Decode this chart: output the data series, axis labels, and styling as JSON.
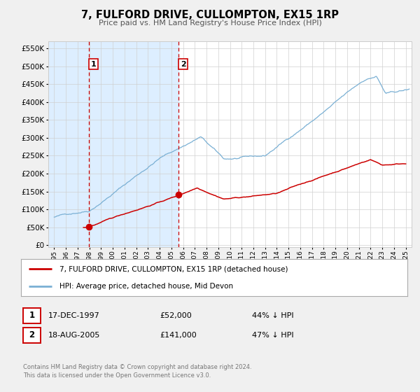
{
  "title": "7, FULFORD DRIVE, CULLOMPTON, EX15 1RP",
  "subtitle": "Price paid vs. HM Land Registry's House Price Index (HPI)",
  "ytick_values": [
    0,
    50000,
    100000,
    150000,
    200000,
    250000,
    300000,
    350000,
    400000,
    450000,
    500000,
    550000
  ],
  "xlim": [
    1994.5,
    2025.5
  ],
  "ylim": [
    -5000,
    570000
  ],
  "sale1_x": 1997.96,
  "sale1_y": 52000,
  "sale2_x": 2005.63,
  "sale2_y": 141000,
  "shade_x_end": 2005.63,
  "legend_line1": "7, FULFORD DRIVE, CULLOMPTON, EX15 1RP (detached house)",
  "legend_line2": "HPI: Average price, detached house, Mid Devon",
  "table_row1": [
    "1",
    "17-DEC-1997",
    "£52,000",
    "44% ↓ HPI"
  ],
  "table_row2": [
    "2",
    "18-AUG-2005",
    "£141,000",
    "47% ↓ HPI"
  ],
  "footer1": "Contains HM Land Registry data © Crown copyright and database right 2024.",
  "footer2": "This data is licensed under the Open Government Licence v3.0.",
  "hpi_color": "#7ab0d4",
  "sale_color": "#cc0000",
  "shade_color": "#ddeeff",
  "vline_color": "#cc0000",
  "bg_color": "#f0f0f0",
  "plot_bg_color": "#ffffff"
}
